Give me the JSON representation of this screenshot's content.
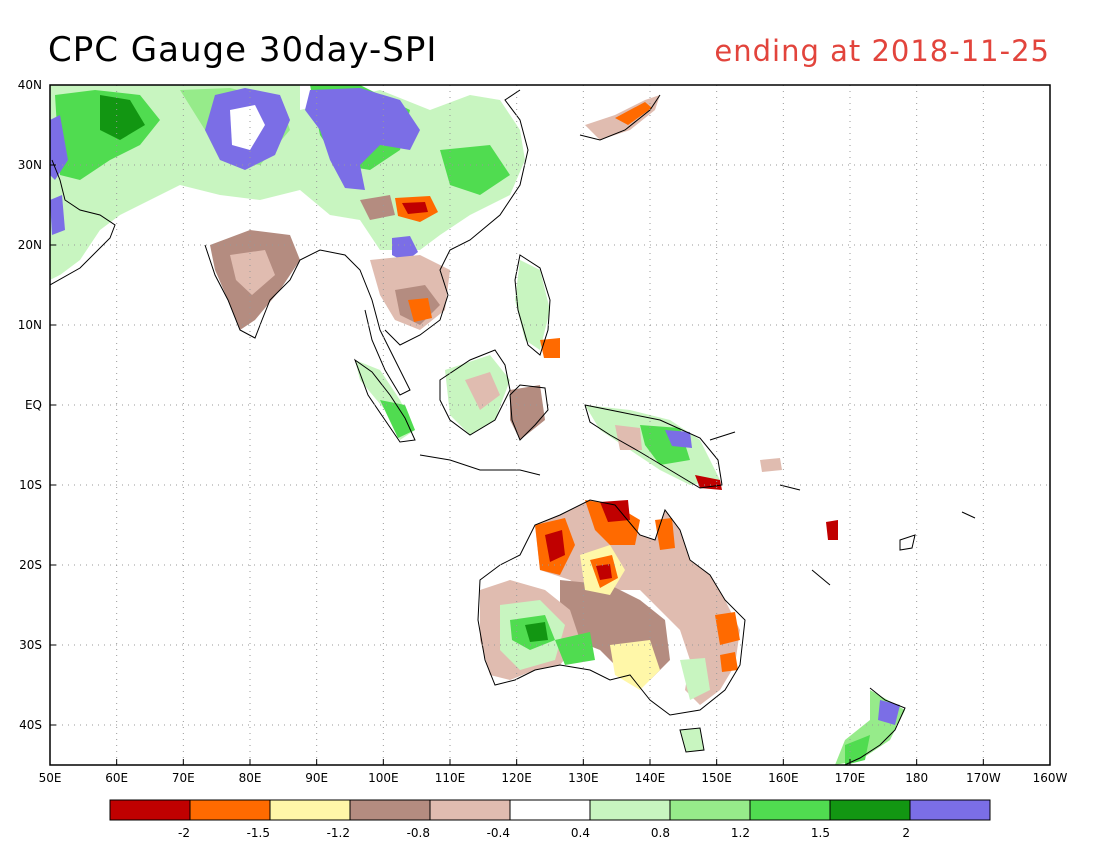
{
  "header": {
    "title": "CPC Gauge 30day-SPI",
    "subtitle": "ending at 2018-11-25"
  },
  "map": {
    "lon_range": [
      50,
      200
    ],
    "lat_range": [
      -45,
      40
    ],
    "lon_ticks": [
      {
        "value": 50,
        "label": "50E"
      },
      {
        "value": 60,
        "label": "60E"
      },
      {
        "value": 70,
        "label": "70E"
      },
      {
        "value": 80,
        "label": "80E"
      },
      {
        "value": 90,
        "label": "90E"
      },
      {
        "value": 100,
        "label": "100E"
      },
      {
        "value": 110,
        "label": "110E"
      },
      {
        "value": 120,
        "label": "120E"
      },
      {
        "value": 130,
        "label": "130E"
      },
      {
        "value": 140,
        "label": "140E"
      },
      {
        "value": 150,
        "label": "150E"
      },
      {
        "value": 160,
        "label": "160E"
      },
      {
        "value": 170,
        "label": "170E"
      },
      {
        "value": 180,
        "label": "180"
      },
      {
        "value": 190,
        "label": "170W"
      },
      {
        "value": 200,
        "label": "160W"
      }
    ],
    "lat_ticks": [
      {
        "value": 40,
        "label": "40N"
      },
      {
        "value": 30,
        "label": "30N"
      },
      {
        "value": 20,
        "label": "20N"
      },
      {
        "value": 10,
        "label": "10N"
      },
      {
        "value": 0,
        "label": "EQ"
      },
      {
        "value": -10,
        "label": "10S"
      },
      {
        "value": -20,
        "label": "20S"
      },
      {
        "value": -30,
        "label": "30S"
      },
      {
        "value": -40,
        "label": "40S"
      }
    ],
    "grid": true
  },
  "legend": {
    "colors": [
      "#c00000",
      "#ff6a00",
      "#fff7a8",
      "#b48c80",
      "#e0bcb0",
      "#ffffff",
      "#c8f5c0",
      "#96eb8a",
      "#50dc50",
      "#129612",
      "#7b6ee6"
    ],
    "labels": [
      "-2",
      "-1.5",
      "-1.2",
      "-0.8",
      "-0.4",
      "0.4",
      "0.8",
      "1.2",
      "1.5",
      "2"
    ]
  }
}
